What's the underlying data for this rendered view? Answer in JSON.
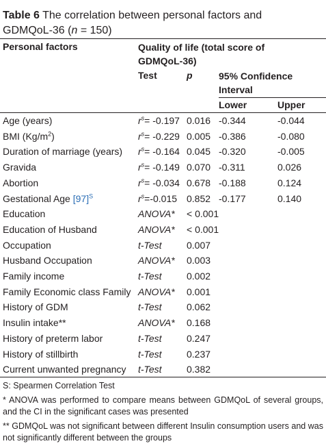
{
  "title": {
    "label": "Table 6",
    "text": "The correlation between personal factors and GDMQoL-36 (",
    "n": "n",
    "text_end": " = 150)"
  },
  "header": {
    "factors": "Personal factors",
    "quality": "Quality of life (total score of GDMQoL-36)",
    "test": "Test",
    "p": "p",
    "ci": "95% Confidence Interval",
    "lower": "Lower",
    "upper": "Upper"
  },
  "rows": [
    {
      "factor": "Age (years)",
      "test_symbol": "r",
      "test_sup": "s",
      "test": "= -0.197",
      "p": "0.016",
      "lower": "-0.344",
      "upper": "-0.044"
    },
    {
      "factor": "BMI (Kg/m",
      "factor_sup": "2",
      "factor_end": ")",
      "test_symbol": "r",
      "test_sup": "s",
      "test": "= -0.229",
      "p": "0.005",
      "lower": "-0.386",
      "upper": "-0.080"
    },
    {
      "factor": "Duration of marriage (years)",
      "test_symbol": "r",
      "test_sup": "s",
      "test": "= -0.164",
      "p": "0.045",
      "lower": "-0.320",
      "upper": "-0.005"
    },
    {
      "factor": "Gravida",
      "test_symbol": "r",
      "test_sup": "s",
      "test": "= -0.149",
      "p": "0.070",
      "lower": "-0.311",
      "upper": "0.026"
    },
    {
      "factor": "Abortion",
      "test_symbol": "r",
      "test_sup": "s",
      "test": "= -0.034",
      "p": "0.678",
      "lower": "-0.188",
      "upper": "0.124"
    },
    {
      "factor": "Gestational Age ",
      "factor_ref": "[97]",
      "factor_sup": "S",
      "test_symbol": "r",
      "test_sup": "s",
      "test": "=-0.015",
      "p": "0.852",
      "lower": "-0.177",
      "upper": "0.140"
    },
    {
      "factor": "Education",
      "test": "ANOVA*",
      "p": "< 0.001"
    },
    {
      "factor": "Education of Husband",
      "test": "ANOVA*",
      "p": "< 0.001"
    },
    {
      "factor": "Occupation",
      "test": "t-Test",
      "p": "0.007"
    },
    {
      "factor": "Husband Occupation",
      "test": "ANOVA*",
      "p": "0.003"
    },
    {
      "factor": "Family income",
      "test": "t-Test",
      "p": "0.002"
    },
    {
      "factor": "Family Economic class Family",
      "test": "ANOVA*",
      "p": "0.001"
    },
    {
      "factor": "History of GDM",
      "test": "t-Test",
      "p": "0.062"
    },
    {
      "factor": "Insulin intake**",
      "test": "ANOVA*",
      "p": "0.168"
    },
    {
      "factor": "History of preterm labor",
      "test": "t-Test",
      "p": "0.247"
    },
    {
      "factor": "History of stillbirth",
      "test": "t-Test",
      "p": "0.237"
    },
    {
      "factor": "Current unwanted pregnancy",
      "test": "t-Test",
      "p": "0.382"
    }
  ],
  "footnotes": [
    "S: Spearmen Correlation Test",
    "* ANOVA was performed to compare means between GDMQoL of several groups, and the CI in the significant cases was presented",
    "** GDMQoL was not significant between different Insulin consumption users and was not significantly different between the groups"
  ]
}
